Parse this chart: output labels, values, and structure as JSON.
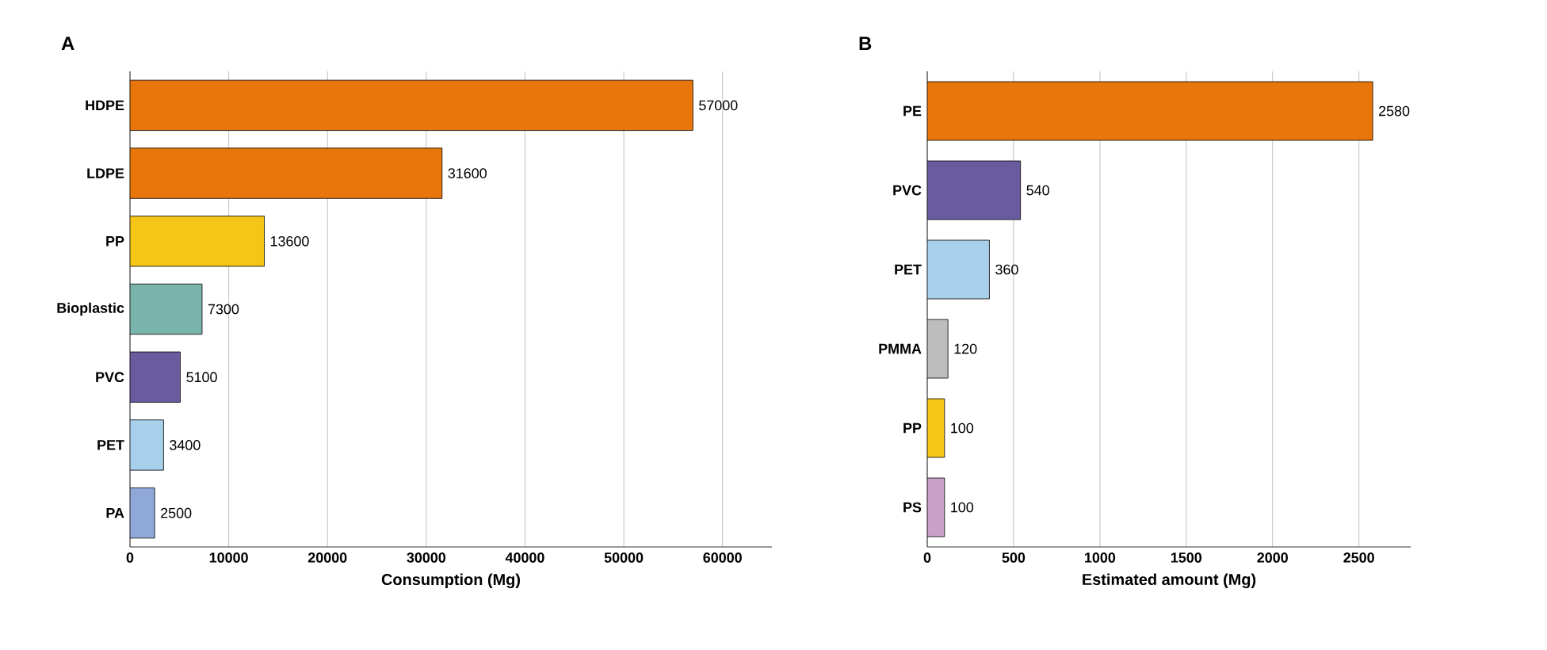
{
  "chart_data": [
    {
      "type": "bar",
      "orientation": "horizontal",
      "title": "A",
      "xlabel": "Consumption (Mg)",
      "categories": [
        "HDPE",
        "LDPE",
        "PP",
        "Bioplastic",
        "PVC",
        "PET",
        "PA"
      ],
      "values": [
        57000,
        31600,
        13600,
        7300,
        5100,
        3400,
        2500
      ],
      "colors": [
        "#e8760a",
        "#e8760a",
        "#f5c518",
        "#7ab5ad",
        "#6a5b9e",
        "#a8d0ea",
        "#8fa8d8"
      ],
      "xlim": [
        0,
        65000
      ],
      "xticks": [
        0,
        10000,
        20000,
        30000,
        40000,
        50000,
        60000
      ],
      "grid": "x",
      "data_labels": true
    },
    {
      "type": "bar",
      "orientation": "horizontal",
      "title": "B",
      "xlabel": "Estimated amount (Mg)",
      "categories": [
        "PE",
        "PVC",
        "PET",
        "PMMA",
        "PP",
        "PS"
      ],
      "values": [
        2580,
        540,
        360,
        120,
        100,
        100
      ],
      "colors": [
        "#e8760a",
        "#6a5b9e",
        "#a8d0ea",
        "#bdbdbd",
        "#f5c518",
        "#c9a0c8"
      ],
      "xlim": [
        0,
        2800
      ],
      "xticks": [
        0,
        500,
        1000,
        1500,
        2000,
        2500
      ],
      "grid": "x",
      "data_labels": true
    }
  ]
}
